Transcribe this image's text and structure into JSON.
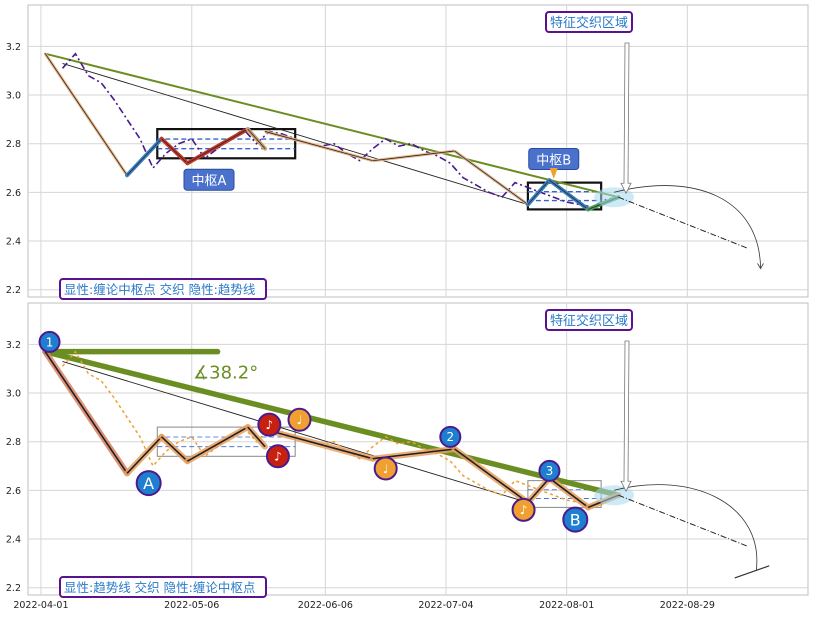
{
  "colors": {
    "grid": "#d6d6d6",
    "axis": "#bfbfbf",
    "price": "#4b1a8c",
    "trend": "#6b8e23",
    "box": "#111111",
    "pivot_fill": "#ffffff",
    "label_blue": "#2a7ac8",
    "label_border": "#5a138e",
    "box_label_bg": "#4a72cc",
    "orange": "#f0a030",
    "brown": "#c8a070",
    "red_dark": "#c0392b",
    "teal": "#2aa0b0",
    "marker_blue": "#1e7fd0",
    "marker_red": "#c82010",
    "marker_orange": "#f0a030"
  },
  "xaxis": {
    "ticks": [
      "2022-04-01",
      "2022-05-06",
      "2022-06-06",
      "2022-07-04",
      "2022-08-01",
      "2022-08-29"
    ],
    "range": [
      "2022-03-29",
      "2022-09-26"
    ]
  },
  "panels": [
    {
      "id": "top",
      "ylim": [
        2.17,
        3.37
      ],
      "yticks": [
        "2.2",
        "2.4",
        "2.6",
        "2.8",
        "3.0",
        "3.2"
      ],
      "legend_text": "显性:缠论中枢点 交织 隐性:趋势线",
      "feature_label": "特征交织区域",
      "box_labels": [
        "中枢A",
        "中枢B"
      ]
    },
    {
      "id": "bottom",
      "ylim": [
        2.17,
        3.37
      ],
      "yticks": [
        "2.2",
        "2.4",
        "2.6",
        "2.8",
        "3.0",
        "3.2"
      ],
      "legend_text": "显性:趋势线 交织 隐性:缠论中枢点",
      "feature_label": "特征交织区域",
      "angle_label": "∡38.2°",
      "pivot_markers": [
        "1",
        "A",
        "♪",
        "♪",
        "♩",
        "♩",
        "2",
        "♪",
        "3",
        "B"
      ]
    }
  ],
  "chart_data": {
    "type": "line",
    "dates": [
      "2022-04-06",
      "2022-04-09",
      "2022-04-12",
      "2022-04-15",
      "2022-04-18",
      "2022-04-21",
      "2022-04-24",
      "2022-04-27",
      "2022-04-30",
      "2022-05-03",
      "2022-05-06",
      "2022-05-09",
      "2022-05-12",
      "2022-05-15",
      "2022-05-18",
      "2022-05-21",
      "2022-05-24",
      "2022-05-27",
      "2022-05-30",
      "2022-06-02",
      "2022-06-05",
      "2022-06-08",
      "2022-06-11",
      "2022-06-14",
      "2022-06-17",
      "2022-06-20",
      "2022-06-23",
      "2022-06-26",
      "2022-06-29",
      "2022-07-02",
      "2022-07-05",
      "2022-07-08",
      "2022-07-11",
      "2022-07-14",
      "2022-07-17",
      "2022-07-20",
      "2022-07-23",
      "2022-07-26",
      "2022-07-29",
      "2022-08-01",
      "2022-08-04",
      "2022-08-07",
      "2022-08-10",
      "2022-08-13"
    ],
    "price": [
      3.11,
      3.17,
      3.08,
      3.05,
      2.98,
      2.9,
      2.82,
      2.7,
      2.76,
      2.8,
      2.82,
      2.74,
      2.78,
      2.82,
      2.86,
      2.8,
      2.85,
      2.84,
      2.82,
      2.8,
      2.79,
      2.8,
      2.76,
      2.73,
      2.78,
      2.82,
      2.79,
      2.8,
      2.77,
      2.75,
      2.72,
      2.66,
      2.63,
      2.6,
      2.58,
      2.64,
      2.62,
      2.6,
      2.58,
      2.56,
      2.55,
      2.54,
      2.57,
      2.58
    ],
    "segments": [
      {
        "x": [
          "2022-04-02",
          "2022-04-21"
        ],
        "y": [
          3.17,
          2.67
        ]
      },
      {
        "x": [
          "2022-04-21",
          "2022-04-29"
        ],
        "y": [
          2.67,
          2.82
        ]
      },
      {
        "x": [
          "2022-04-29",
          "2022-05-05"
        ],
        "y": [
          2.82,
          2.72
        ]
      },
      {
        "x": [
          "2022-05-05",
          "2022-05-19"
        ],
        "y": [
          2.72,
          2.86
        ]
      },
      {
        "x": [
          "2022-05-19",
          "2022-05-23"
        ],
        "y": [
          2.86,
          2.78
        ]
      },
      {
        "x": [
          "2022-05-23",
          "2022-06-17"
        ],
        "y": [
          2.85,
          2.73
        ]
      },
      {
        "x": [
          "2022-06-17",
          "2022-07-06"
        ],
        "y": [
          2.73,
          2.77
        ]
      },
      {
        "x": [
          "2022-07-06",
          "2022-07-23"
        ],
        "y": [
          2.77,
          2.55
        ]
      },
      {
        "x": [
          "2022-07-23",
          "2022-07-28"
        ],
        "y": [
          2.55,
          2.65
        ]
      },
      {
        "x": [
          "2022-07-28",
          "2022-08-06"
        ],
        "y": [
          2.65,
          2.53
        ]
      },
      {
        "x": [
          "2022-08-06",
          "2022-08-13"
        ],
        "y": [
          2.53,
          2.58
        ]
      }
    ],
    "trendline": {
      "x": [
        "2022-04-02",
        "2022-08-13"
      ],
      "y": [
        3.17,
        2.58
      ]
    },
    "boxes": [
      {
        "name": "中枢A",
        "x": [
          "2022-04-28",
          "2022-05-30"
        ],
        "y": [
          2.74,
          2.86
        ]
      },
      {
        "name": "中枢B",
        "x": [
          "2022-07-23",
          "2022-08-09"
        ],
        "y": [
          2.53,
          2.64
        ]
      }
    ],
    "projection": {
      "x": [
        "2022-08-13",
        "2022-09-12"
      ],
      "y": [
        2.58,
        2.37
      ]
    },
    "xlabel": "",
    "ylabel": "",
    "grid": true
  }
}
